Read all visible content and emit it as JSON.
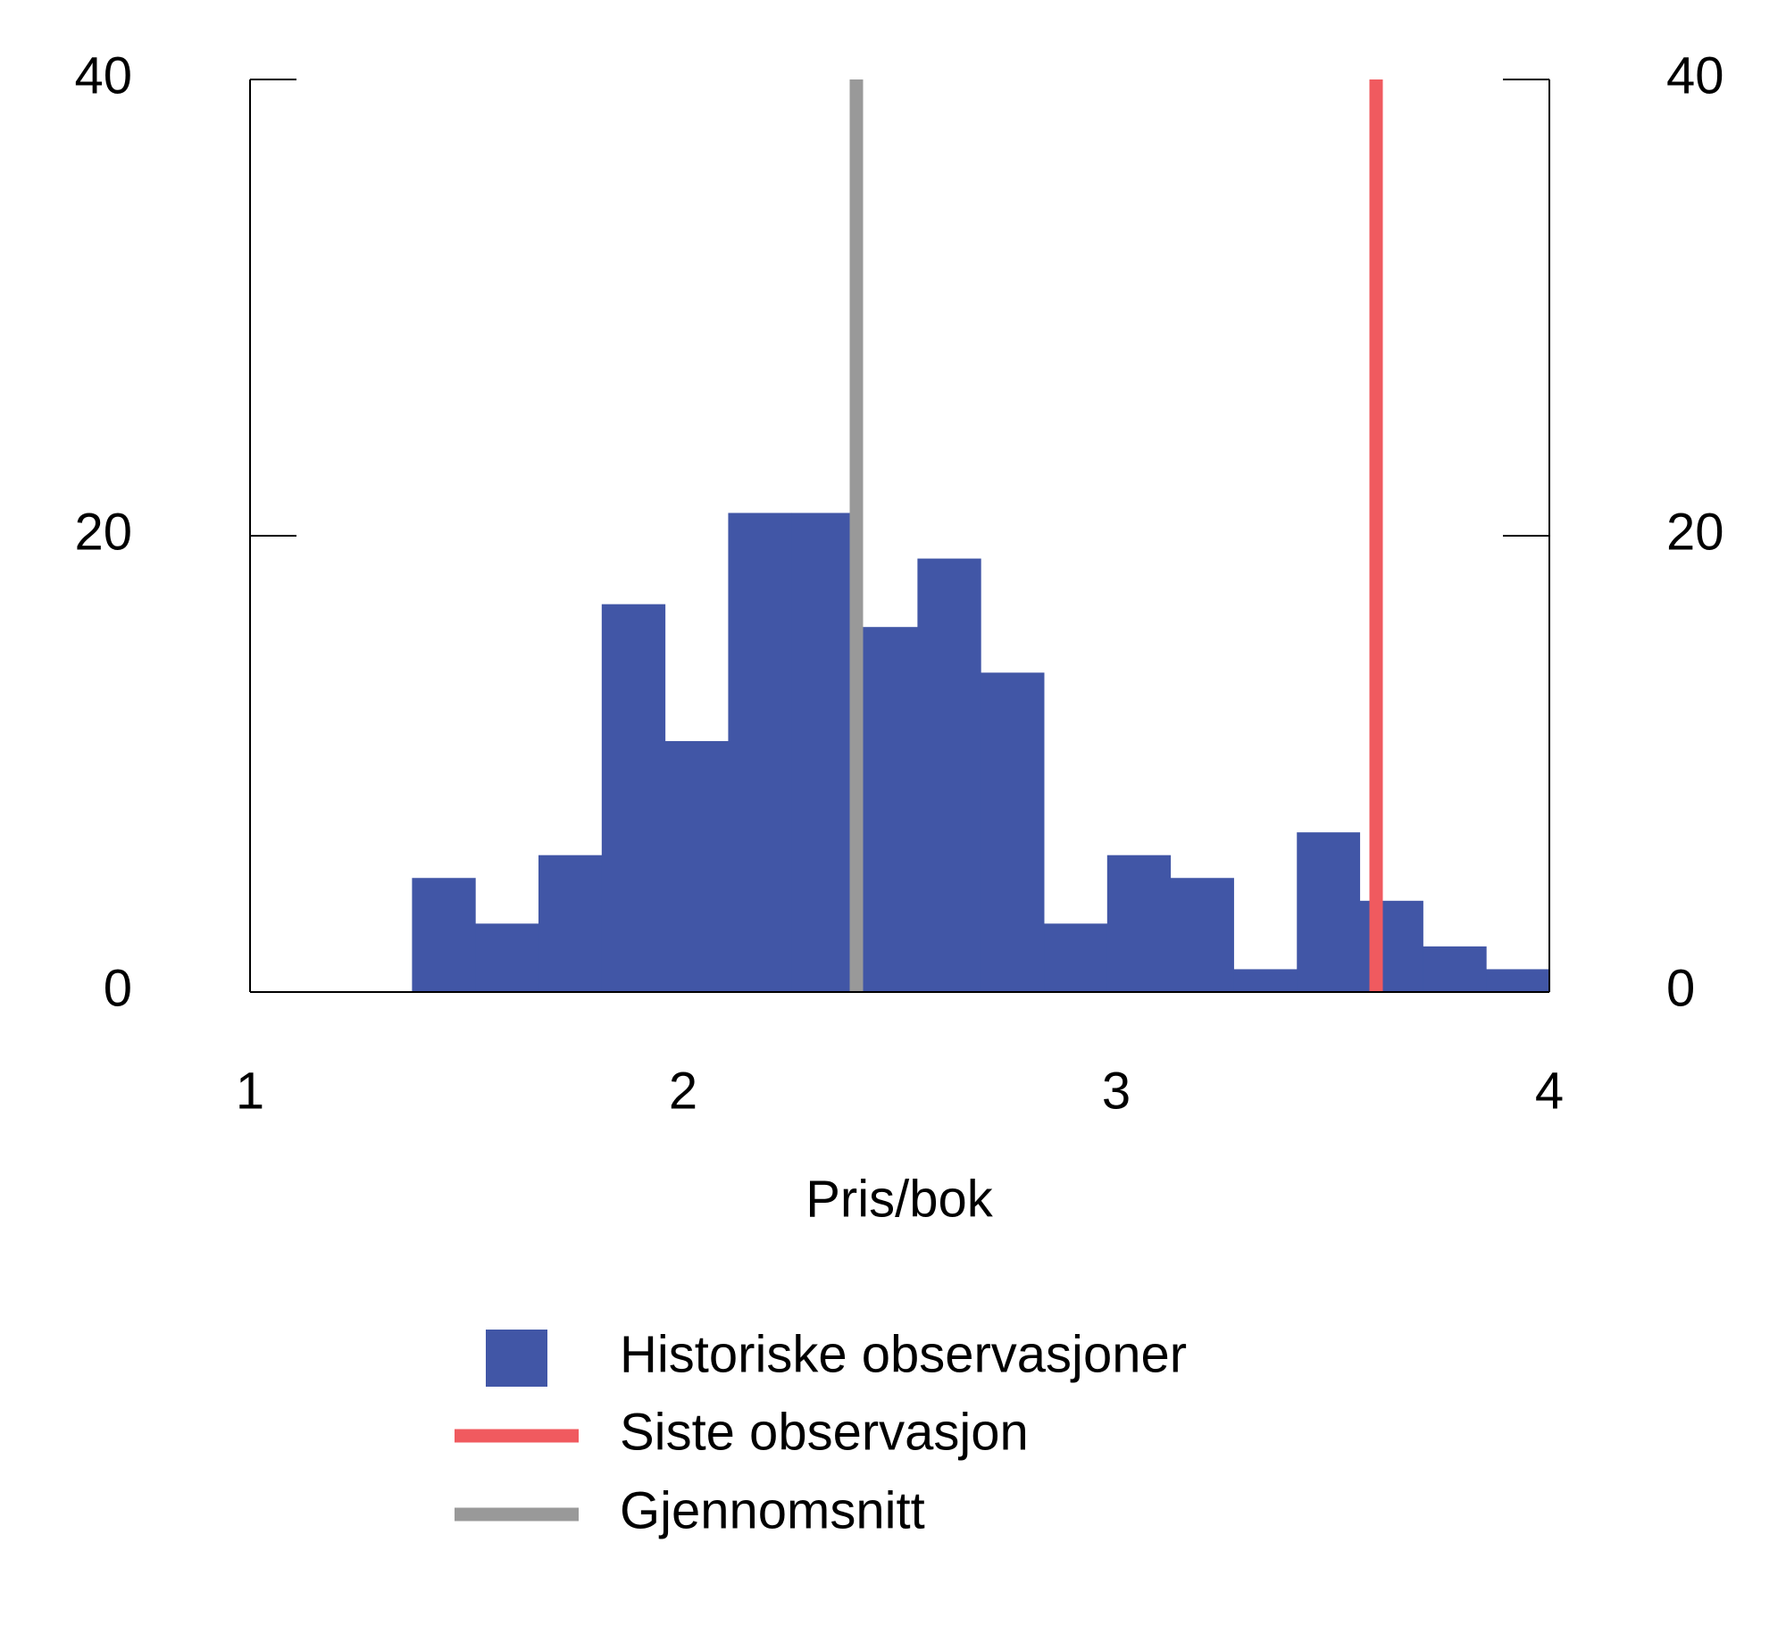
{
  "chart_data": {
    "type": "histogram",
    "xlabel": "Pris/bok",
    "bins": [
      1.374,
      1.52,
      1.666,
      1.812,
      1.958,
      2.104,
      2.25,
      2.395,
      2.541,
      2.687,
      2.833,
      2.979,
      3.125,
      3.271,
      3.417,
      3.562,
      3.708,
      3.854,
      4.0
    ],
    "series": [
      {
        "name": "Historiske observasjoner",
        "color": "#4156a6",
        "values": [
          5,
          3,
          6,
          17,
          11,
          21,
          21,
          16,
          19,
          14,
          3,
          6,
          5,
          1,
          7,
          4,
          2,
          1
        ]
      }
    ],
    "reference_lines": [
      {
        "name": "Siste observasjon",
        "color": "#f05a5f",
        "x": 3.6
      },
      {
        "name": "Gjennomsnitt",
        "color": "#999999",
        "x": 2.4
      }
    ],
    "xlim": [
      1,
      4
    ],
    "xticks": [
      1,
      2,
      3,
      4
    ],
    "ylim": [
      0,
      40
    ],
    "yticks": [
      0,
      20,
      40
    ],
    "y2lim": [
      0,
      40
    ],
    "y2ticks": [
      0,
      20,
      40
    ],
    "grid": false
  }
}
